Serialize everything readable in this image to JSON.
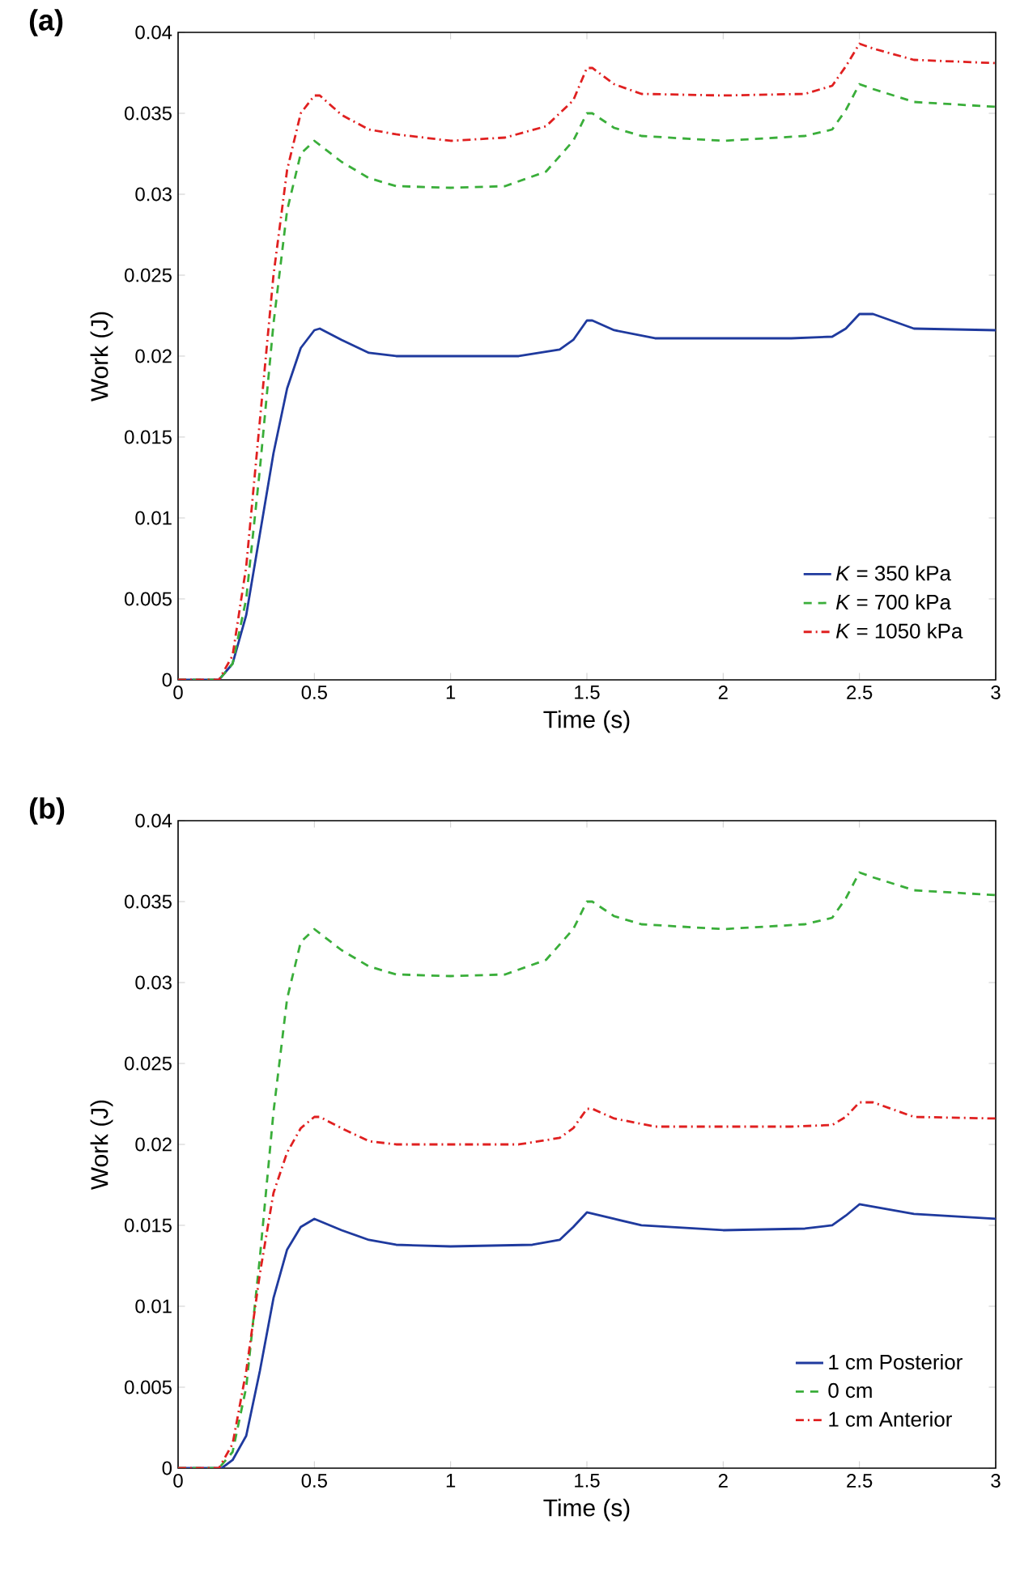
{
  "chart_data": [
    {
      "type": "line",
      "title": "(a)",
      "xlabel": "Time (s)",
      "ylabel": "Work (J)",
      "xlim": [
        0,
        3
      ],
      "ylim": [
        0,
        0.04
      ],
      "xticks": [
        0,
        0.5,
        1,
        1.5,
        2,
        2.5,
        3
      ],
      "yticks": [
        0,
        0.005,
        0.01,
        0.015,
        0.02,
        0.025,
        0.03,
        0.035,
        0.04
      ],
      "legend": "bottom right",
      "grid": false,
      "series": [
        {
          "name": "*K* = 350 kPa",
          "color": "#1f3a9e",
          "line_style": "solid",
          "x": [
            0,
            0.15,
            0.2,
            0.25,
            0.3,
            0.35,
            0.4,
            0.45,
            0.5,
            0.52,
            0.6,
            0.7,
            0.8,
            1.0,
            1.25,
            1.4,
            1.45,
            1.5,
            1.52,
            1.6,
            1.75,
            2.0,
            2.25,
            2.4,
            2.45,
            2.5,
            2.55,
            2.7,
            3.0
          ],
          "values": [
            0,
            0,
            0.001,
            0.004,
            0.009,
            0.014,
            0.018,
            0.0205,
            0.0216,
            0.0217,
            0.021,
            0.0202,
            0.02,
            0.02,
            0.02,
            0.0204,
            0.021,
            0.0222,
            0.0222,
            0.0216,
            0.0211,
            0.0211,
            0.0211,
            0.0212,
            0.0217,
            0.0226,
            0.0226,
            0.0217,
            0.0216
          ]
        },
        {
          "name": "*K* = 700 kPa",
          "color": "#3aae3a",
          "line_style": "dashed",
          "x": [
            0,
            0.15,
            0.2,
            0.25,
            0.3,
            0.35,
            0.4,
            0.45,
            0.5,
            0.6,
            0.7,
            0.8,
            1.0,
            1.2,
            1.35,
            1.45,
            1.5,
            1.52,
            1.6,
            1.7,
            2.0,
            2.3,
            2.4,
            2.45,
            2.5,
            2.55,
            2.7,
            3.0
          ],
          "values": [
            0,
            0,
            0.001,
            0.005,
            0.013,
            0.022,
            0.029,
            0.0325,
            0.0333,
            0.032,
            0.031,
            0.0305,
            0.0304,
            0.0305,
            0.0314,
            0.0333,
            0.035,
            0.035,
            0.0341,
            0.0336,
            0.0333,
            0.0336,
            0.034,
            0.0352,
            0.0368,
            0.0365,
            0.0357,
            0.0354
          ]
        },
        {
          "name": "*K* = 1050 kPa",
          "color": "#e02020",
          "line_style": "dashdot",
          "x": [
            0,
            0.15,
            0.2,
            0.25,
            0.3,
            0.35,
            0.4,
            0.45,
            0.5,
            0.52,
            0.6,
            0.7,
            0.8,
            1.0,
            1.2,
            1.35,
            1.45,
            1.5,
            1.52,
            1.6,
            1.7,
            2.0,
            2.3,
            2.4,
            2.45,
            2.5,
            2.55,
            2.7,
            3.0
          ],
          "values": [
            0,
            0,
            0.0015,
            0.007,
            0.016,
            0.025,
            0.0315,
            0.035,
            0.0361,
            0.0361,
            0.0349,
            0.034,
            0.0337,
            0.0333,
            0.0335,
            0.0342,
            0.0358,
            0.0378,
            0.0378,
            0.0368,
            0.0362,
            0.0361,
            0.0362,
            0.0367,
            0.0379,
            0.0393,
            0.039,
            0.0383,
            0.0381
          ]
        }
      ]
    },
    {
      "type": "line",
      "title": "(b)",
      "xlabel": "Time (s)",
      "ylabel": "Work (J)",
      "xlim": [
        0,
        3
      ],
      "ylim": [
        0,
        0.04
      ],
      "xticks": [
        0,
        0.5,
        1,
        1.5,
        2,
        2.5,
        3
      ],
      "yticks": [
        0,
        0.005,
        0.01,
        0.015,
        0.02,
        0.025,
        0.03,
        0.035,
        0.04
      ],
      "legend": "bottom right",
      "grid": false,
      "series": [
        {
          "name": "1 cm Posterior",
          "color": "#1f3a9e",
          "line_style": "solid",
          "x": [
            0,
            0.16,
            0.2,
            0.25,
            0.3,
            0.35,
            0.4,
            0.45,
            0.5,
            0.6,
            0.7,
            0.8,
            1.0,
            1.3,
            1.4,
            1.45,
            1.5,
            1.6,
            1.7,
            2.0,
            2.3,
            2.4,
            2.45,
            2.5,
            2.6,
            2.7,
            3.0
          ],
          "values": [
            0,
            0,
            0.0005,
            0.002,
            0.006,
            0.0105,
            0.0135,
            0.0149,
            0.0154,
            0.0147,
            0.0141,
            0.0138,
            0.0137,
            0.0138,
            0.0141,
            0.0149,
            0.0158,
            0.0154,
            0.015,
            0.0147,
            0.0148,
            0.015,
            0.0156,
            0.0163,
            0.016,
            0.0157,
            0.0154
          ]
        },
        {
          "name": "0 cm",
          "color": "#3aae3a",
          "line_style": "dashed",
          "x": [
            0,
            0.15,
            0.2,
            0.25,
            0.3,
            0.35,
            0.4,
            0.45,
            0.5,
            0.6,
            0.7,
            0.8,
            1.0,
            1.2,
            1.35,
            1.45,
            1.5,
            1.52,
            1.6,
            1.7,
            2.0,
            2.3,
            2.4,
            2.45,
            2.5,
            2.55,
            2.7,
            3.0
          ],
          "values": [
            0,
            0,
            0.001,
            0.005,
            0.013,
            0.022,
            0.029,
            0.0325,
            0.0333,
            0.032,
            0.031,
            0.0305,
            0.0304,
            0.0305,
            0.0314,
            0.0333,
            0.035,
            0.035,
            0.0341,
            0.0336,
            0.0333,
            0.0336,
            0.034,
            0.0352,
            0.0368,
            0.0365,
            0.0357,
            0.0354
          ]
        },
        {
          "name": "1 cm Anterior",
          "color": "#e02020",
          "line_style": "dashdot",
          "x": [
            0,
            0.15,
            0.2,
            0.25,
            0.3,
            0.35,
            0.4,
            0.45,
            0.5,
            0.52,
            0.6,
            0.7,
            0.8,
            1.0,
            1.25,
            1.4,
            1.45,
            1.5,
            1.52,
            1.6,
            1.75,
            2.0,
            2.25,
            2.4,
            2.45,
            2.5,
            2.55,
            2.7,
            3.0
          ],
          "values": [
            0,
            0,
            0.0015,
            0.006,
            0.012,
            0.017,
            0.0195,
            0.021,
            0.0217,
            0.0217,
            0.021,
            0.0202,
            0.02,
            0.02,
            0.02,
            0.0204,
            0.021,
            0.0222,
            0.0222,
            0.0216,
            0.0211,
            0.0211,
            0.0211,
            0.0212,
            0.0217,
            0.0226,
            0.0226,
            0.0217,
            0.0216
          ]
        }
      ]
    }
  ]
}
